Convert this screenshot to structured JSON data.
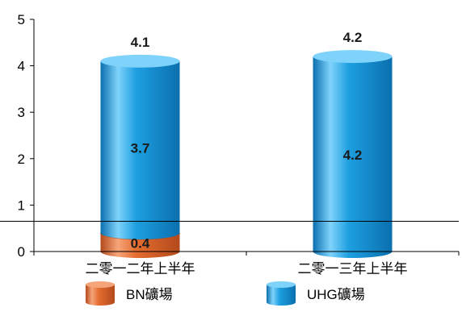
{
  "colors": {
    "bn": "#e46c2f",
    "bn_dark": "#b34a1c",
    "bn_light": "#f6a57a",
    "uhg": "#1d9fe0",
    "uhg_dark": "#0b6fae",
    "uhg_light": "#7fd3fb",
    "axis": "#000000"
  },
  "chart_data": {
    "type": "bar",
    "stacked": true,
    "style": "3d-cylinder",
    "title": "",
    "xlabel": "",
    "ylabel": "",
    "ylim": [
      0,
      5
    ],
    "yticks": [
      "0",
      "1",
      "2",
      "3",
      "4",
      "5"
    ],
    "grid": false,
    "reference_line": 0.65,
    "categories": [
      "二零一二年上半年",
      "二零一三年上半年"
    ],
    "series": [
      {
        "name": "BN礦場",
        "color": "bn",
        "values": [
          0.4,
          0
        ],
        "labels": [
          "0.4",
          ""
        ]
      },
      {
        "name": "UHG礦場",
        "color": "uhg",
        "values": [
          3.7,
          4.2
        ],
        "labels": [
          "3.7",
          "4.2"
        ]
      }
    ],
    "totals": {
      "values": [
        4.1,
        4.2
      ],
      "labels": [
        "4.1",
        "4.2"
      ]
    },
    "legend": {
      "placement": "bottom"
    }
  }
}
